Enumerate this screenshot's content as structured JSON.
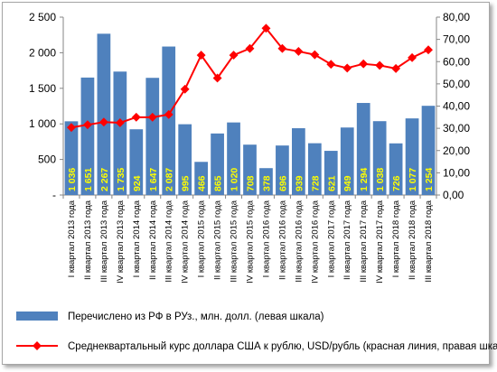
{
  "chart_data": {
    "type": "bar",
    "categories": [
      "I квартал 2013 года",
      "II квартал 2013 года",
      "III квартал 2013 года",
      "IV квартал 2013 года",
      "I квартал 2014 года",
      "II квартал 2014 года",
      "III квартал 2014 года",
      "IV квартал 2014 года",
      "I квартал 2015 года",
      "II квартал 2015 года",
      "III квартал 2015 года",
      "IV квартал 2015 года",
      "I квартал 2016 года",
      "II квартал 2016 года",
      "III квартал 2016 года",
      "IV квартал 2016 года",
      "I квартал 2017 года",
      "II квартал 2017 года",
      "III квартал 2017 года",
      "IV квартал 2017 года",
      "I квартал 2018 года",
      "II квартал 2018 года",
      "III квартал 2018 года"
    ],
    "series": [
      {
        "name": "Перечислено из РФ в РУз., млн. долл. (левая шкала)",
        "type": "bar",
        "axis": "left",
        "color": "#4f81bd",
        "values": [
          1036,
          1651,
          2267,
          1735,
          924,
          1647,
          2087,
          995,
          466,
          865,
          1020,
          708,
          378,
          696,
          939,
          728,
          621,
          949,
          1294,
          1038,
          726,
          1077,
          1254
        ],
        "labels": [
          "1 036",
          "1 651",
          "2 267",
          "1 735",
          "924",
          "1 647",
          "2 087",
          "995",
          "466",
          "865",
          "1 020",
          "708",
          "378",
          "696",
          "939",
          "728",
          "621",
          "949",
          "1 294",
          "1 038",
          "726",
          "1 077",
          "1 254"
        ]
      },
      {
        "name": "Среднеквартальный курс доллара США к рублю, USD/рубль (красная линия, правая шкала)",
        "type": "line",
        "axis": "right",
        "color": "#ff0000",
        "values": [
          30.4,
          31.6,
          32.8,
          32.5,
          35.0,
          35.0,
          36.2,
          47.6,
          62.9,
          52.6,
          62.9,
          65.9,
          75.0,
          65.9,
          64.6,
          63.1,
          58.8,
          57.1,
          59.0,
          58.3,
          56.9,
          61.8,
          65.3
        ]
      }
    ],
    "y_left": {
      "lim": [
        0,
        2500
      ],
      "ticks": [
        0,
        500,
        1000,
        1500,
        2000,
        2500
      ],
      "tick_labels": [
        "-",
        "500",
        "1 000",
        "1 500",
        "2 000",
        "2 500"
      ]
    },
    "y_right": {
      "lim": [
        0,
        80
      ],
      "ticks": [
        0,
        10,
        20,
        30,
        40,
        50,
        60,
        70,
        80
      ],
      "tick_labels": [
        "0,00",
        "10,00",
        "20,00",
        "30,00",
        "40,00",
        "50,00",
        "60,00",
        "70,00",
        "80,00"
      ]
    },
    "grid": false,
    "legend_position": "bottom"
  },
  "legend": {
    "bar_label": "Перечислено из РФ в РУз., млн. долл. (левая шкала)",
    "line_label": "Среднеквартальный курс доллара США к рублю, USD/рубль (красная линия, правая шкала)"
  }
}
